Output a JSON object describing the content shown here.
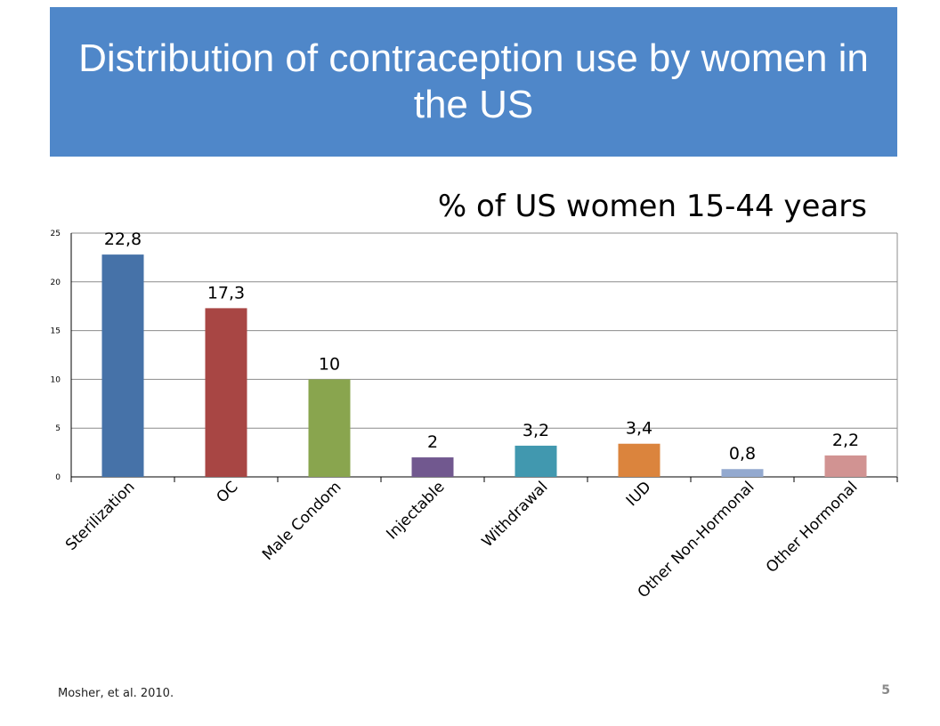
{
  "slide": {
    "title": "Distribution of contraception use by women in the US",
    "source": "Mosher, et al. 2010.",
    "page_number": "5"
  },
  "colors": {
    "title_bg": "#4f87c9",
    "title_text": "#ffffff"
  },
  "chart_data": {
    "type": "bar",
    "title": "% of US women 15-44 years",
    "xlabel": "",
    "ylabel": "",
    "categories": [
      "Sterilization",
      "OC",
      "Male Condom",
      "Injectable",
      "Withdrawal",
      "IUD",
      "Other Non-Hormonal",
      "Other Hormonal"
    ],
    "values": [
      22.8,
      17.3,
      10,
      2,
      3.2,
      3.4,
      0.8,
      2.2
    ],
    "data_labels": [
      "22,8",
      "17,3",
      "10",
      "2",
      "3,2",
      "3,4",
      "0,8",
      "2,2"
    ],
    "bar_colors": [
      "#4672a8",
      "#a84644",
      "#89a54e",
      "#71588f",
      "#4198af",
      "#db843d",
      "#93a9cf",
      "#d19392"
    ],
    "ylim": [
      0,
      25
    ],
    "yticks": [
      0,
      5,
      10,
      15,
      20,
      25
    ],
    "grid": true,
    "legend": "none"
  }
}
